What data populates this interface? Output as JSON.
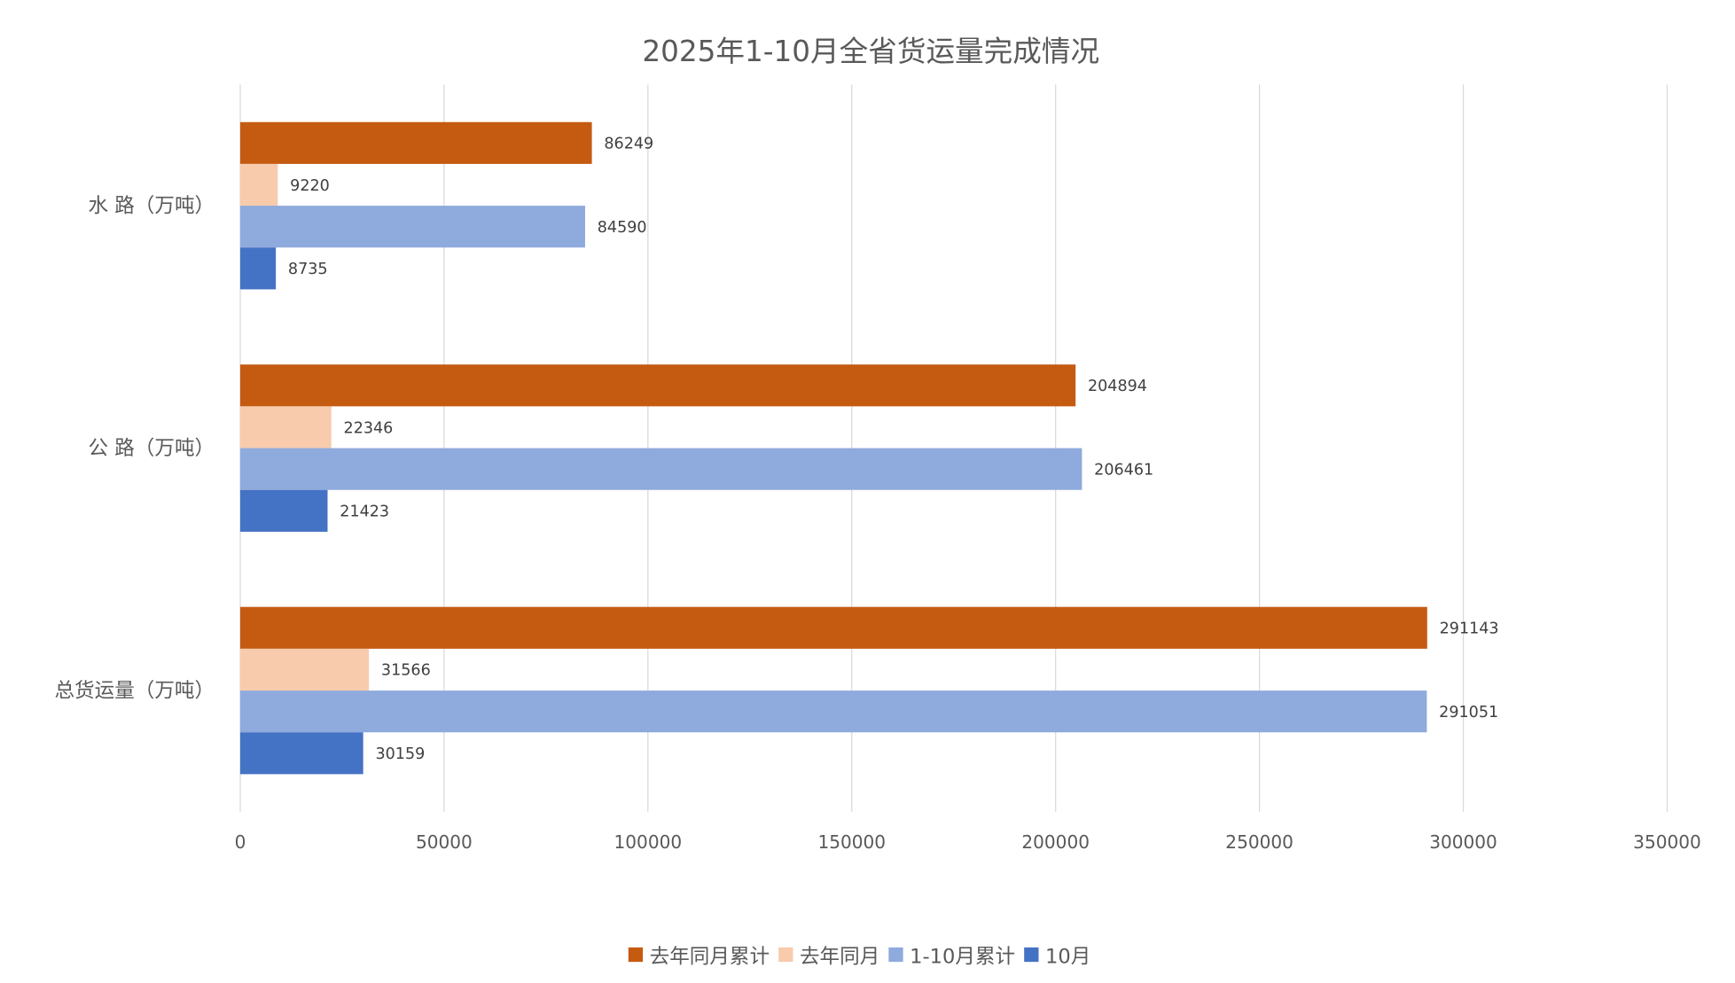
{
  "chart_data": {
    "type": "bar",
    "orientation": "horizontal",
    "title": "2025年1-10月全省货运量完成情况",
    "categories": [
      "水 路（万吨）",
      "公 路（万吨）",
      "总货运量（万吨）"
    ],
    "series": [
      {
        "name": "去年同月累计",
        "color": "#C55A11",
        "values": [
          86249,
          204894,
          291143
        ]
      },
      {
        "name": "去年同月",
        "color": "#F8CBAD",
        "values": [
          9220,
          22346,
          31566
        ]
      },
      {
        "name": "1-10月累计",
        "color": "#8FAADC",
        "values": [
          84590,
          206461,
          291051
        ]
      },
      {
        "name": "10月",
        "color": "#4472C4",
        "values": [
          8735,
          21423,
          30159
        ]
      }
    ],
    "xlim": [
      0,
      350000
    ],
    "xticks": [
      "0",
      "50000",
      "100000",
      "150000",
      "200000",
      "250000",
      "300000",
      "350000"
    ],
    "grid": true,
    "data_labels": true,
    "legend_position": "bottom"
  }
}
